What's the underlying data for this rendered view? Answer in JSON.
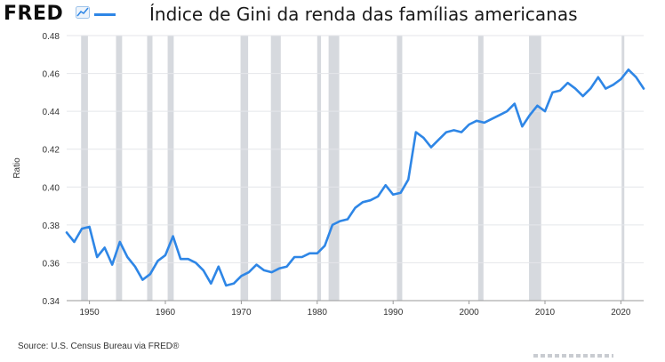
{
  "header": {
    "logo": "FRED",
    "logo_icon": "trend-line-chart-icon",
    "title": "Índice de Gini da renda das famílias americanas"
  },
  "footer": {
    "source": "Source: U.S. Census Bureau via FRED®"
  },
  "chart_data": {
    "type": "line",
    "title": "Índice de Gini da renda das famílias americanas",
    "xlabel": "",
    "ylabel": "Ratio",
    "xlim": [
      1947,
      2023
    ],
    "ylim": [
      0.34,
      0.48
    ],
    "x_ticks": [
      1950,
      1960,
      1970,
      1980,
      1990,
      2000,
      2010,
      2020
    ],
    "y_ticks": [
      0.34,
      0.36,
      0.38,
      0.4,
      0.42,
      0.44,
      0.46,
      0.48
    ],
    "y_tick_labels": [
      "0.34",
      "0.36",
      "0.38",
      "0.40",
      "0.42",
      "0.44",
      "0.46",
      "0.48"
    ],
    "grid": true,
    "legend": "top-left",
    "line_color": "#2e86e6",
    "recession_color": "#d6d9de",
    "recessions": [
      [
        1948.9,
        1949.8
      ],
      [
        1953.5,
        1954.3
      ],
      [
        1957.6,
        1958.3
      ],
      [
        1960.3,
        1961.1
      ],
      [
        1969.9,
        1970.9
      ],
      [
        1973.9,
        1975.2
      ],
      [
        1980.0,
        1980.5
      ],
      [
        1981.5,
        1982.9
      ],
      [
        1990.5,
        1991.2
      ],
      [
        2001.2,
        2001.9
      ],
      [
        2007.9,
        2009.5
      ],
      [
        2020.1,
        2020.4
      ]
    ],
    "series": [
      {
        "x": [
          1947,
          1948,
          1949,
          1950,
          1951,
          1952,
          1953,
          1954,
          1955,
          1956,
          1957,
          1958,
          1959,
          1960,
          1961,
          1962,
          1963,
          1964,
          1965,
          1966,
          1967,
          1968,
          1969,
          1970,
          1971,
          1972,
          1973,
          1974,
          1975,
          1976,
          1977,
          1978,
          1979,
          1980,
          1981,
          1982,
          1983,
          1984,
          1985,
          1986,
          1987,
          1988,
          1989,
          1990,
          1991,
          1992,
          1993,
          1994,
          1995,
          1996,
          1997,
          1998,
          1999,
          2000,
          2001,
          2002,
          2003,
          2004,
          2005,
          2006,
          2007,
          2008,
          2009,
          2010,
          2011,
          2012,
          2013,
          2014,
          2015,
          2016,
          2017,
          2018,
          2019,
          2020,
          2021,
          2022,
          2023
        ],
        "y": [
          0.376,
          0.371,
          0.378,
          0.379,
          0.363,
          0.368,
          0.359,
          0.371,
          0.363,
          0.358,
          0.351,
          0.354,
          0.361,
          0.364,
          0.374,
          0.362,
          0.362,
          0.36,
          0.356,
          0.349,
          0.358,
          0.348,
          0.349,
          0.353,
          0.355,
          0.359,
          0.356,
          0.355,
          0.357,
          0.358,
          0.363,
          0.363,
          0.365,
          0.365,
          0.369,
          0.38,
          0.382,
          0.383,
          0.389,
          0.392,
          0.393,
          0.395,
          0.401,
          0.396,
          0.397,
          0.404,
          0.429,
          0.426,
          0.421,
          0.425,
          0.429,
          0.43,
          0.429,
          0.433,
          0.435,
          0.434,
          0.436,
          0.438,
          0.44,
          0.444,
          0.432,
          0.438,
          0.443,
          0.44,
          0.45,
          0.451,
          0.455,
          0.452,
          0.448,
          0.452,
          0.458,
          0.452,
          0.454,
          0.457,
          0.462,
          0.458,
          0.452
        ]
      }
    ]
  }
}
